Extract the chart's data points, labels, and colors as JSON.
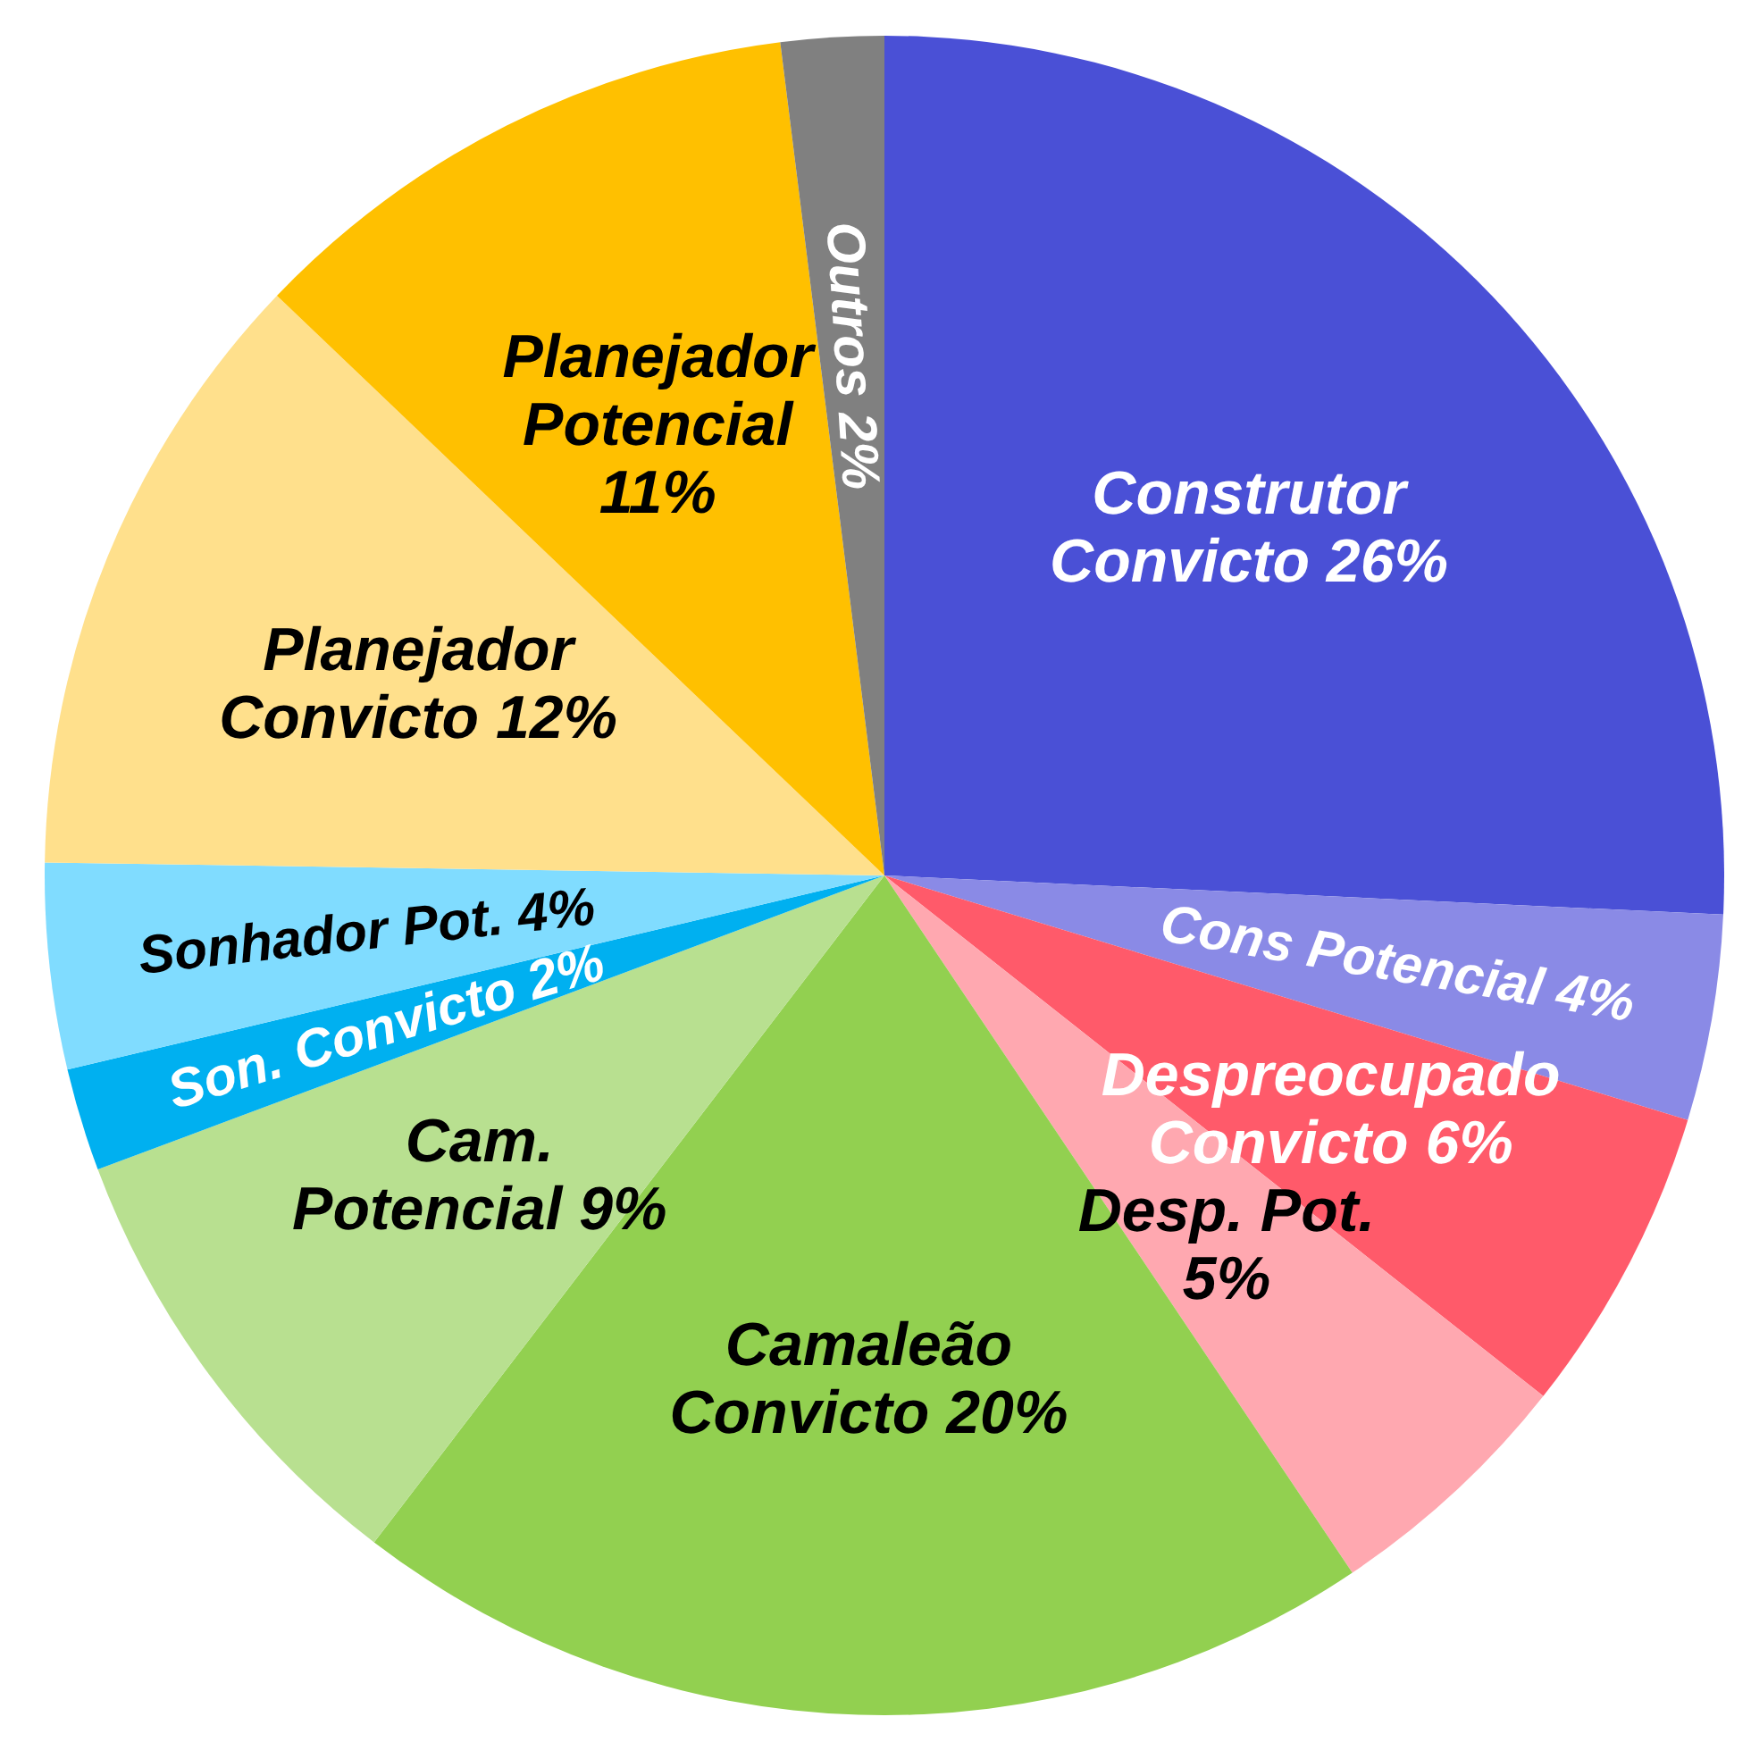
{
  "chart_data": {
    "type": "pie",
    "categories": [
      "Construtor Convicto",
      "Cons Potencial",
      "Despreocupado Convicto",
      "Desp. Pot.",
      "Camaleão Convicto",
      "Cam. Potencial",
      "Son. Convicto",
      "Sonhador Pot.",
      "Planejador Convicto",
      "Planejador Potencial",
      "Outros"
    ],
    "values": [
      26,
      4,
      6,
      5,
      20,
      9,
      2,
      4,
      12,
      11,
      2
    ],
    "value_labels": [
      "26%",
      "4%",
      "6%",
      "5%",
      "20%",
      "9%",
      "2%",
      "4%",
      "12%",
      "11%",
      "2%"
    ],
    "colors": [
      "#4a50d6",
      "#8a8ae6",
      "#ff5a6a",
      "#ffa8b0",
      "#92d050",
      "#b8e090",
      "#00b0f0",
      "#80dcff",
      "#ffe08c",
      "#ffc000",
      "#808080"
    ]
  }
}
